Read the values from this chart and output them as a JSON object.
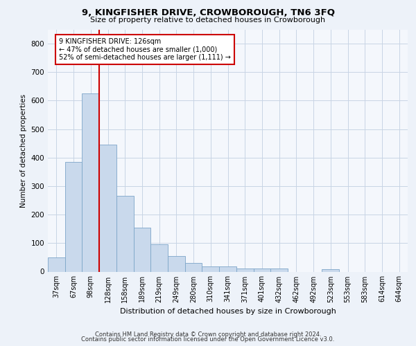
{
  "title1": "9, KINGFISHER DRIVE, CROWBOROUGH, TN6 3FQ",
  "title2": "Size of property relative to detached houses in Crowborough",
  "xlabel": "Distribution of detached houses by size in Crowborough",
  "ylabel": "Number of detached properties",
  "bar_labels": [
    "37sqm",
    "67sqm",
    "98sqm",
    "128sqm",
    "158sqm",
    "189sqm",
    "219sqm",
    "249sqm",
    "280sqm",
    "310sqm",
    "341sqm",
    "371sqm",
    "401sqm",
    "432sqm",
    "462sqm",
    "492sqm",
    "523sqm",
    "553sqm",
    "583sqm",
    "614sqm",
    "644sqm"
  ],
  "bar_values": [
    50,
    385,
    625,
    445,
    265,
    155,
    95,
    55,
    30,
    18,
    18,
    10,
    10,
    10,
    0,
    0,
    8,
    0,
    0,
    0,
    0
  ],
  "bar_color": "#c9d9ec",
  "bar_edge_color": "#7ca5c8",
  "vline_x_index": 2,
  "annotation_text": "9 KINGFISHER DRIVE: 126sqm\n← 47% of detached houses are smaller (1,000)\n52% of semi-detached houses are larger (1,111) →",
  "annotation_box_color": "#ffffff",
  "annotation_box_edge": "#cc0000",
  "vline_color": "#cc0000",
  "ylim": [
    0,
    850
  ],
  "yticks": [
    0,
    100,
    200,
    300,
    400,
    500,
    600,
    700,
    800
  ],
  "footer1": "Contains HM Land Registry data © Crown copyright and database right 2024.",
  "footer2": "Contains public sector information licensed under the Open Government Licence v3.0.",
  "bg_color": "#edf2f9",
  "plot_bg_color": "#f4f7fc",
  "grid_color": "#c8d4e5",
  "title1_fontsize": 9.5,
  "title2_fontsize": 8,
  "ylabel_fontsize": 7.5,
  "xlabel_fontsize": 8,
  "tick_fontsize": 7,
  "footer_fontsize": 6
}
